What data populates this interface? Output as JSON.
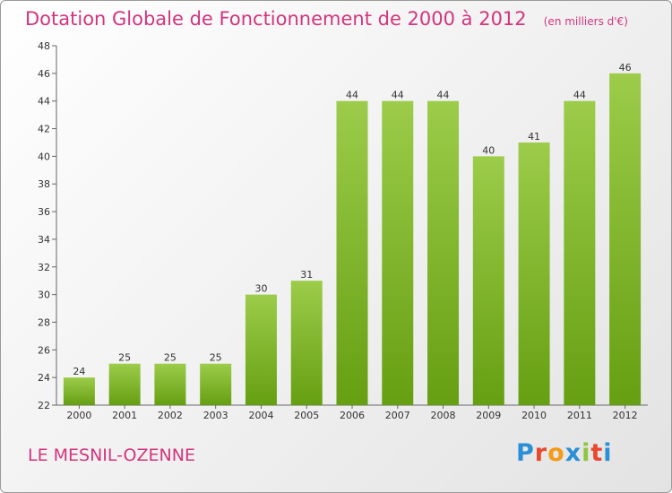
{
  "header": {
    "title": "Dotation Globale de Fonctionnement de 2000 à 2012",
    "unit": "(en milliers d'€)"
  },
  "footer": {
    "commune": "LE MESNIL-OZENNE",
    "brand": "Proxiti"
  },
  "colors": {
    "accent": "#d2357e",
    "bar_light": "#9ccc4a",
    "bar_dark": "#669f12"
  },
  "chart_data": {
    "type": "bar",
    "title": "Dotation Globale de Fonctionnement de 2000 à 2012",
    "subtitle": "(en milliers d'€)",
    "xlabel": "",
    "ylabel": "",
    "categories": [
      "2000",
      "2001",
      "2002",
      "2003",
      "2004",
      "2005",
      "2006",
      "2007",
      "2008",
      "2009",
      "2010",
      "2011",
      "2012"
    ],
    "values": [
      24,
      25,
      25,
      25,
      30,
      31,
      44,
      44,
      44,
      40,
      41,
      44,
      46
    ],
    "ylim": [
      22,
      48
    ],
    "ytick_step": 2,
    "grid": false,
    "legend": "none"
  }
}
